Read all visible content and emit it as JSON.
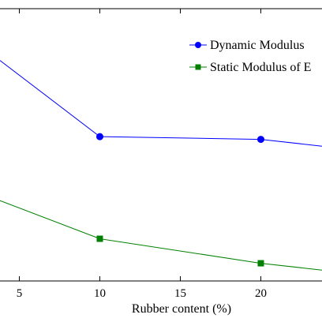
{
  "chart_data": {
    "type": "line",
    "xlabel": "Rubber content (%)",
    "ylabel": "",
    "title": "",
    "xlim": [
      3.8,
      23.8
    ],
    "ylim": [
      0,
      10
    ],
    "xticks": [
      5,
      10,
      15,
      20
    ],
    "grid": false,
    "legend_position": "top-right",
    "series": [
      {
        "name": "Dynamic Modulus",
        "color": "#0000ff",
        "marker": "circle",
        "x": [
          3.8,
          10,
          20,
          23.8
        ],
        "y": [
          8.1,
          5.3,
          5.2,
          4.95
        ]
      },
      {
        "name": "Static Modulus of E",
        "color": "#008000",
        "marker": "square",
        "x": [
          3.8,
          10,
          20,
          23.8
        ],
        "y": [
          2.95,
          1.55,
          0.65,
          0.4
        ]
      }
    ]
  }
}
